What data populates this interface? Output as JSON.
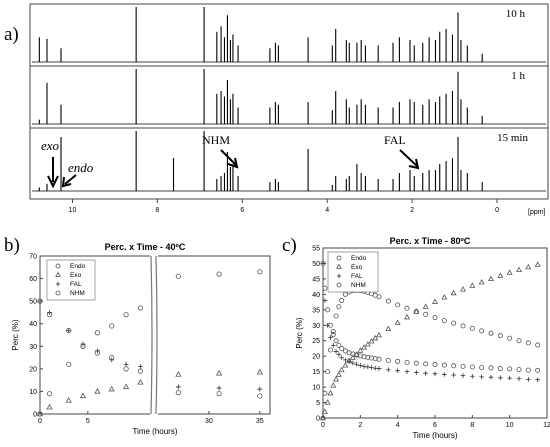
{
  "panel_labels": {
    "a": "a)",
    "b": "b)",
    "c": "c)"
  },
  "chart_data": [
    {
      "id": "a",
      "type": "line",
      "title": "",
      "xlabel": "",
      "x_unit": "[ppm]",
      "xlim": [
        11.0,
        -1.2
      ],
      "xticks": [
        10,
        8,
        6,
        4,
        2,
        0
      ],
      "grid": false,
      "traces": [
        {
          "name": "10 h"
        },
        {
          "name": "1 h"
        },
        {
          "name": "15 min"
        }
      ],
      "annotations": [
        {
          "text": "exo",
          "x": 10.75
        },
        {
          "text": "endo",
          "x": 10.55
        },
        {
          "text": "NHM",
          "x": 7.6
        },
        {
          "text": "FAL",
          "x": 4.45
        }
      ],
      "peaks": [
        {
          "x": 10.78,
          "h": [
            0.45,
            0.08,
            0.06
          ]
        },
        {
          "x": 10.6,
          "h": [
            0.42,
            0.75,
            0.12
          ]
        },
        {
          "x": 10.27,
          "h": [
            0.25,
            0.35,
            0.9
          ]
        },
        {
          "x": 8.5,
          "h": [
            1.0,
            1.0,
            1.0
          ]
        },
        {
          "x": 7.62,
          "h": [
            0.0,
            0.0,
            0.55
          ]
        },
        {
          "x": 6.9,
          "h": [
            1.0,
            1.0,
            1.0
          ]
        },
        {
          "x": 6.6,
          "h": [
            0.55,
            0.55,
            0.2
          ]
        },
        {
          "x": 6.5,
          "h": [
            0.65,
            0.6,
            0.25
          ]
        },
        {
          "x": 6.42,
          "h": [
            0.45,
            0.5,
            0.3
          ]
        },
        {
          "x": 6.35,
          "h": [
            0.85,
            0.8,
            0.65
          ]
        },
        {
          "x": 6.28,
          "h": [
            0.4,
            0.45,
            0.4
          ]
        },
        {
          "x": 6.22,
          "h": [
            0.5,
            0.55,
            0.45
          ]
        },
        {
          "x": 6.1,
          "h": [
            0.3,
            0.3,
            0.25
          ]
        },
        {
          "x": 5.35,
          "h": [
            0.25,
            0.3,
            0.15
          ]
        },
        {
          "x": 5.22,
          "h": [
            0.35,
            0.4,
            0.2
          ]
        },
        {
          "x": 5.15,
          "h": [
            0.3,
            0.35,
            0.15
          ]
        },
        {
          "x": 4.45,
          "h": [
            0.45,
            0.4,
            0.7
          ]
        },
        {
          "x": 3.88,
          "h": [
            0.3,
            0.25,
            0.1
          ]
        },
        {
          "x": 3.8,
          "h": [
            0.6,
            0.6,
            0.25
          ]
        },
        {
          "x": 3.55,
          "h": [
            0.4,
            0.45,
            0.2
          ]
        },
        {
          "x": 3.48,
          "h": [
            0.35,
            0.3,
            0.25
          ]
        },
        {
          "x": 3.3,
          "h": [
            0.35,
            0.35,
            0.45
          ]
        },
        {
          "x": 3.2,
          "h": [
            0.4,
            0.45,
            0.3
          ]
        },
        {
          "x": 3.1,
          "h": [
            0.3,
            0.35,
            0.25
          ]
        },
        {
          "x": 2.8,
          "h": [
            0.3,
            0.3,
            0.2
          ]
        },
        {
          "x": 2.45,
          "h": [
            0.35,
            0.3,
            0.2
          ]
        },
        {
          "x": 2.3,
          "h": [
            0.45,
            0.4,
            0.3
          ]
        },
        {
          "x": 2.05,
          "h": [
            0.4,
            0.45,
            0.35
          ]
        },
        {
          "x": 1.95,
          "h": [
            0.3,
            0.4,
            0.25
          ]
        },
        {
          "x": 1.75,
          "h": [
            0.35,
            0.35,
            0.3
          ]
        },
        {
          "x": 1.6,
          "h": [
            0.45,
            0.45,
            0.35
          ]
        },
        {
          "x": 1.45,
          "h": [
            0.4,
            0.4,
            0.35
          ]
        },
        {
          "x": 1.35,
          "h": [
            0.55,
            0.5,
            0.45
          ]
        },
        {
          "x": 1.2,
          "h": [
            0.6,
            0.55,
            0.5
          ]
        },
        {
          "x": 1.05,
          "h": [
            0.5,
            0.6,
            0.55
          ]
        },
        {
          "x": 0.92,
          "h": [
            0.9,
            0.95,
            0.9
          ]
        },
        {
          "x": 0.85,
          "h": [
            0.4,
            0.45,
            0.35
          ]
        },
        {
          "x": 0.7,
          "h": [
            0.3,
            0.3,
            0.3
          ]
        },
        {
          "x": 0.35,
          "h": [
            0.15,
            0.15,
            0.15
          ]
        }
      ]
    },
    {
      "id": "b",
      "type": "scatter",
      "title": "Perc. x Time - 40ºC",
      "xlabel": "Time (hours)",
      "ylabel": "Perc (%)",
      "ylim": [
        0,
        70
      ],
      "yticks": [
        0,
        10,
        20,
        30,
        40,
        50,
        60,
        70
      ],
      "axis_break": {
        "between": [
          11.5,
          25
        ]
      },
      "xlim_left": [
        0,
        11.5
      ],
      "xlim_right": [
        25,
        36
      ],
      "xticks_left": [
        0,
        5
      ],
      "xticks_right": [
        30,
        35
      ],
      "grid": false,
      "legend_position": "top-left",
      "series": [
        {
          "name": "Endo",
          "marker": "circle",
          "x": [
            0,
            1,
            3,
            4.5,
            6,
            7.5,
            9,
            10.5,
            27,
            31,
            35
          ],
          "y": [
            0,
            9,
            22,
            30,
            36,
            39,
            44,
            47,
            61,
            62,
            63
          ]
        },
        {
          "name": "Exo",
          "marker": "triangle",
          "x": [
            0,
            1,
            3,
            4.5,
            6,
            7.5,
            9,
            10.5,
            27,
            31,
            35
          ],
          "y": [
            0,
            3,
            6,
            8,
            10,
            11,
            12,
            14,
            17.5,
            18,
            18.5
          ]
        },
        {
          "name": "FAL",
          "marker": "plus",
          "x": [
            0,
            1,
            3,
            4.5,
            6,
            7.5,
            9,
            10.5,
            27,
            31,
            35
          ],
          "y": [
            50,
            45,
            37,
            31,
            28,
            24,
            22,
            21,
            12,
            11.5,
            11
          ]
        },
        {
          "name": "NHM",
          "marker": "circle",
          "x": [
            0,
            1,
            3,
            4.5,
            6,
            7.5,
            9,
            10.5,
            27,
            31,
            35
          ],
          "y": [
            50,
            44,
            37,
            30,
            27,
            25,
            20,
            19,
            9.5,
            9,
            8
          ]
        }
      ]
    },
    {
      "id": "c",
      "type": "scatter",
      "title": "Perc. x Time - 80ºC",
      "xlabel": "Time (hours)",
      "ylabel": "Perc (%)",
      "xlim": [
        0,
        12
      ],
      "ylim": [
        0,
        55
      ],
      "xticks": [
        0,
        2,
        4,
        6,
        8,
        10,
        12
      ],
      "yticks": [
        0,
        5,
        10,
        15,
        20,
        25,
        30,
        35,
        40,
        45,
        50,
        55
      ],
      "grid": false,
      "legend_position": "top-left",
      "series": [
        {
          "name": "Endo",
          "marker": "circle",
          "x": [
            0,
            0.1,
            0.25,
            0.4,
            0.55,
            0.7,
            0.85,
            1.0,
            1.2,
            1.4,
            1.6,
            1.8,
            2.0,
            2.2,
            2.4,
            2.6,
            2.8,
            3.0,
            3.5,
            4.0,
            4.5,
            5.0,
            5.5,
            6.0,
            6.5,
            7.0,
            7.5,
            8.0,
            8.5,
            9.0,
            9.5,
            10.0,
            10.5,
            11.0,
            11.5
          ],
          "y": [
            0,
            8,
            15,
            22,
            28,
            33,
            36,
            38,
            40,
            40.8,
            41.2,
            41.3,
            41.2,
            41,
            40.6,
            40.2,
            39.7,
            39.2,
            37.8,
            36.6,
            35.5,
            34.5,
            33.5,
            32.5,
            31.5,
            30.7,
            29.8,
            29,
            28.2,
            27.4,
            26.6,
            25.8,
            25,
            24.3,
            23.6
          ]
        },
        {
          "name": "Exo",
          "marker": "triangle",
          "x": [
            0,
            0.1,
            0.25,
            0.4,
            0.55,
            0.7,
            0.85,
            1.0,
            1.2,
            1.4,
            1.6,
            1.8,
            2.0,
            2.2,
            2.4,
            2.6,
            2.8,
            3.0,
            3.5,
            4.0,
            4.5,
            5.0,
            5.5,
            6.0,
            6.5,
            7.0,
            7.5,
            8.0,
            8.5,
            9.0,
            9.5,
            10.0,
            10.5,
            11.0,
            11.5
          ],
          "y": [
            0,
            2,
            5,
            8,
            10.5,
            12.5,
            14,
            15.5,
            17,
            18.5,
            19.5,
            20.5,
            21.8,
            22.8,
            23.8,
            24.8,
            25.8,
            26.8,
            28.8,
            30.8,
            32.6,
            34.4,
            36,
            37.6,
            39,
            40.4,
            41.6,
            42.8,
            43.9,
            45,
            46,
            47,
            47.9,
            48.8,
            49.6
          ]
        },
        {
          "name": "FAL",
          "marker": "plus",
          "x": [
            0,
            0.1,
            0.25,
            0.4,
            0.55,
            0.7,
            0.85,
            1.0,
            1.2,
            1.4,
            1.6,
            1.8,
            2.0,
            2.2,
            2.4,
            2.6,
            2.8,
            3.0,
            3.5,
            4.0,
            4.5,
            5.0,
            5.5,
            6.0,
            6.5,
            7.0,
            7.5,
            8.0,
            8.5,
            9.0,
            9.5,
            10.0,
            10.5,
            11.0,
            11.5
          ],
          "y": [
            50,
            38,
            30,
            26,
            23.5,
            21.5,
            20.5,
            19.5,
            18.8,
            18.2,
            17.8,
            17.4,
            17,
            16.7,
            16.5,
            16.3,
            16.1,
            16,
            15.6,
            15.3,
            15,
            14.7,
            14.5,
            14.3,
            14.1,
            13.9,
            13.7,
            13.5,
            13.3,
            13.2,
            13,
            12.9,
            12.7,
            12.5,
            12.4
          ]
        },
        {
          "name": "NHM",
          "marker": "circle",
          "x": [
            0,
            0.1,
            0.25,
            0.4,
            0.55,
            0.7,
            0.85,
            1.0,
            1.2,
            1.4,
            1.6,
            1.8,
            2.0,
            2.2,
            2.4,
            2.6,
            2.8,
            3.0,
            3.5,
            4.0,
            4.5,
            5.0,
            5.5,
            6.0,
            6.5,
            7.0,
            7.5,
            8.0,
            8.5,
            9.0,
            9.5,
            10.0,
            10.5,
            11.0,
            11.5
          ],
          "y": [
            50,
            42,
            35,
            30,
            27,
            25,
            23.5,
            22.5,
            21.7,
            21.1,
            20.7,
            20.4,
            20.1,
            19.8,
            19.6,
            19.4,
            19.2,
            19,
            18.6,
            18.3,
            18,
            17.7,
            17.5,
            17.3,
            17.1,
            16.9,
            16.7,
            16.5,
            16.3,
            16.2,
            16,
            15.9,
            15.7,
            15.5,
            15.4
          ]
        }
      ]
    }
  ]
}
